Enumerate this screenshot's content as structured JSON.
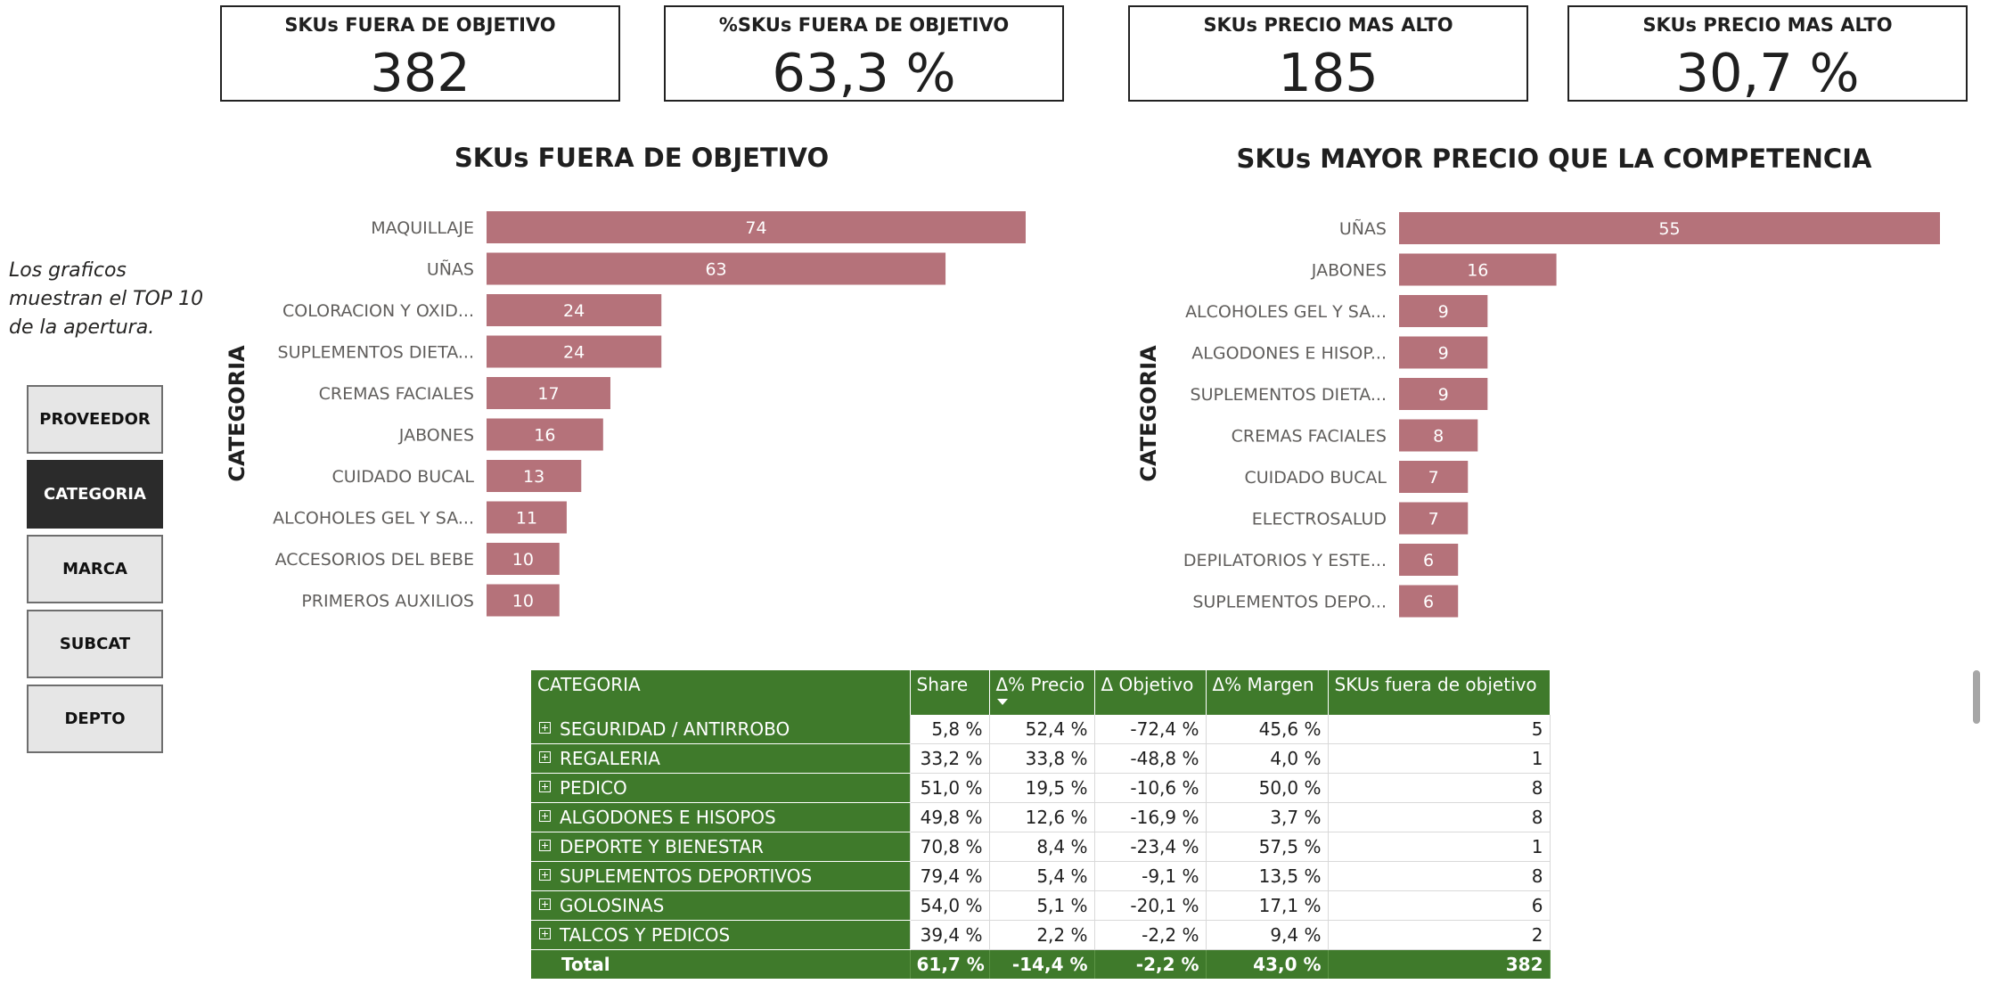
{
  "kpis": [
    {
      "label": "SKUs FUERA DE OBJETIVO",
      "value": "382"
    },
    {
      "label": "%SKUs FUERA DE OBJETIVO",
      "value": "63,3 %"
    },
    {
      "label": "SKUs PRECIO MAS ALTO",
      "value": "185"
    },
    {
      "label": "SKUs PRECIO MAS ALTO",
      "value": "30,7 %"
    }
  ],
  "note": "Los graficos muestran el TOP 10 de la apertura.",
  "slicer": {
    "buttons": [
      "PROVEEDOR",
      "CATEGORIA",
      "MARCA",
      "SUBCAT",
      "DEPTO"
    ],
    "active": "CATEGORIA"
  },
  "chart_data": [
    {
      "type": "bar",
      "orientation": "horizontal",
      "title": "SKUs FUERA DE OBJETIVO",
      "ylabel": "CATEGORIA",
      "color": "#b5727a",
      "categories": [
        "MAQUILLAJE",
        "UÑAS",
        "COLORACION Y OXID...",
        "SUPLEMENTOS DIETA...",
        "CREMAS FACIALES",
        "JABONES",
        "CUIDADO BUCAL",
        "ALCOHOLES GEL Y SA...",
        "ACCESORIOS DEL BEBE",
        "PRIMEROS AUXILIOS"
      ],
      "values": [
        74,
        63,
        24,
        24,
        17,
        16,
        13,
        11,
        10,
        10
      ],
      "xlim": [
        0,
        74
      ]
    },
    {
      "type": "bar",
      "orientation": "horizontal",
      "title": "SKUs MAYOR PRECIO QUE LA COMPETENCIA",
      "ylabel": "CATEGORIA",
      "color": "#b5727a",
      "categories": [
        "UÑAS",
        "JABONES",
        "ALCOHOLES GEL Y SA...",
        "ALGODONES E HISOP...",
        "SUPLEMENTOS DIETA...",
        "CREMAS FACIALES",
        "CUIDADO BUCAL",
        "ELECTROSALUD",
        "DEPILATORIOS Y ESTE...",
        "SUPLEMENTOS DEPO..."
      ],
      "values": [
        55,
        16,
        9,
        9,
        9,
        8,
        7,
        7,
        6,
        6
      ],
      "xlim": [
        0,
        55
      ]
    }
  ],
  "table": {
    "headers": [
      "CATEGORIA",
      "Share",
      "Δ% Precio",
      "Δ Objetivo",
      "Δ% Margen",
      "SKUs fuera de objetivo"
    ],
    "header_color": "#3f7a2b",
    "rows": [
      {
        "cat": "SEGURIDAD / ANTIRROBO",
        "share": "5,8 %",
        "precio": "52,4 %",
        "objetivo": "-72,4 %",
        "margen": "45,6 %",
        "skus": "5"
      },
      {
        "cat": "REGALERIA",
        "share": "33,2 %",
        "precio": "33,8 %",
        "objetivo": "-48,8 %",
        "margen": "4,0 %",
        "skus": "1"
      },
      {
        "cat": "PEDICO",
        "share": "51,0 %",
        "precio": "19,5 %",
        "objetivo": "-10,6 %",
        "margen": "50,0 %",
        "skus": "8"
      },
      {
        "cat": "ALGODONES E HISOPOS",
        "share": "49,8 %",
        "precio": "12,6 %",
        "objetivo": "-16,9 %",
        "margen": "3,7 %",
        "skus": "8"
      },
      {
        "cat": "DEPORTE Y BIENESTAR",
        "share": "70,8 %",
        "precio": "8,4 %",
        "objetivo": "-23,4 %",
        "margen": "57,5 %",
        "skus": "1"
      },
      {
        "cat": "SUPLEMENTOS DEPORTIVOS",
        "share": "79,4 %",
        "precio": "5,4 %",
        "objetivo": "-9,1 %",
        "margen": "13,5 %",
        "skus": "8"
      },
      {
        "cat": "GOLOSINAS",
        "share": "54,0 %",
        "precio": "5,1 %",
        "objetivo": "-20,1 %",
        "margen": "17,1 %",
        "skus": "6"
      },
      {
        "cat": "TALCOS Y PEDICOS",
        "share": "39,4 %",
        "precio": "2,2 %",
        "objetivo": "-2,2 %",
        "margen": "9,4 %",
        "skus": "2"
      }
    ],
    "total": {
      "label": "Total",
      "share": "61,7 %",
      "precio": "-14,4 %",
      "objetivo": "-2,2 %",
      "margen": "43,0 %",
      "skus": "382"
    }
  }
}
